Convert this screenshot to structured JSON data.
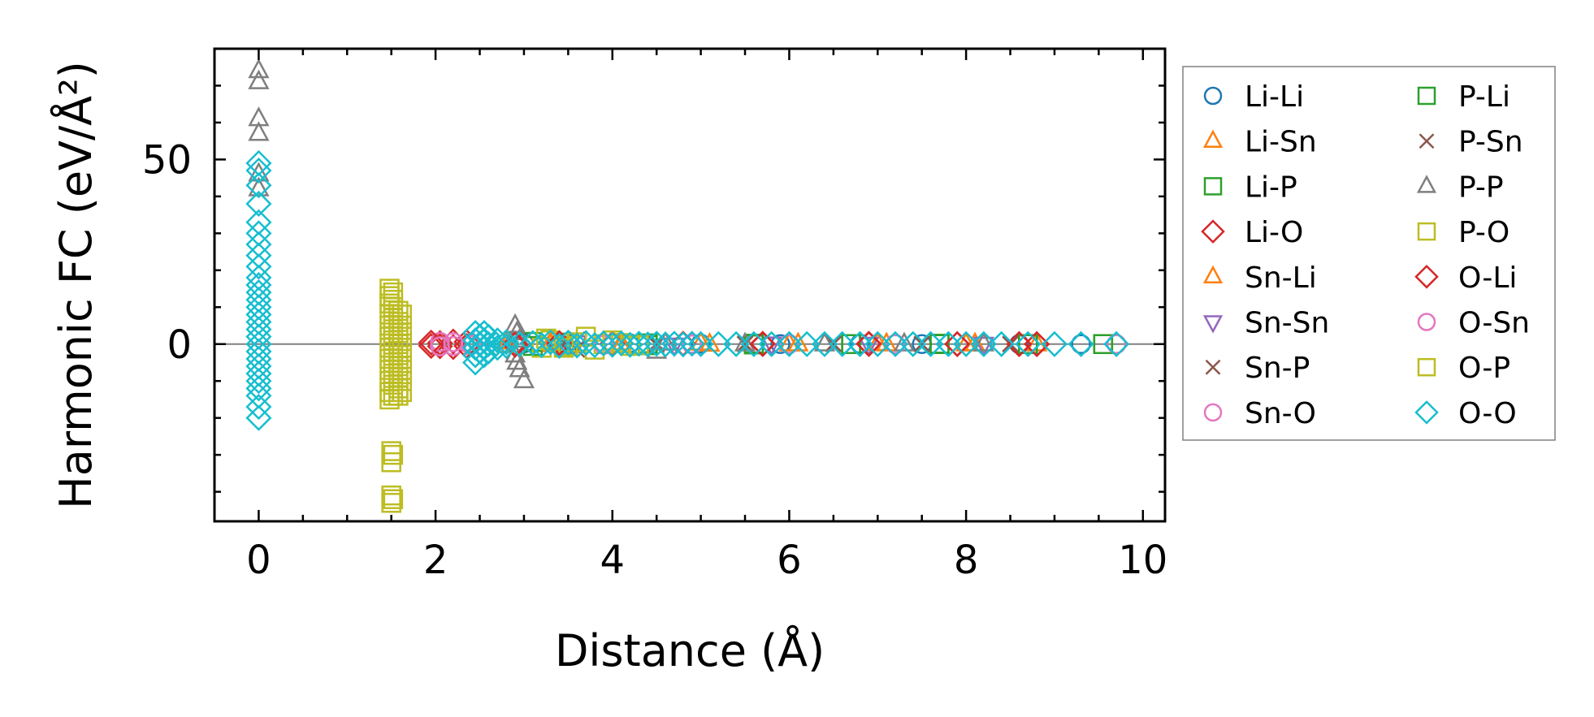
{
  "chart_data": {
    "type": "scatter",
    "xlabel": "Distance (Å)",
    "ylabel": "Harmonic FC (eV/Å²)",
    "xlim": [
      -0.5,
      10.25
    ],
    "ylim": [
      -48,
      80
    ],
    "x_ticks": [
      0,
      2,
      4,
      6,
      8,
      10
    ],
    "y_ticks": [
      0,
      50
    ],
    "reference_line_y": 0,
    "legend_position": "outside-right",
    "series": [
      {
        "name": "Li-Li",
        "marker": "circle",
        "color": "#1f77b4",
        "points": [
          [
            3.0,
            0.2
          ],
          [
            3.4,
            -0.3
          ],
          [
            4.2,
            0.2
          ],
          [
            5.0,
            0.1
          ],
          [
            5.9,
            0.0
          ],
          [
            6.8,
            0.1
          ],
          [
            7.5,
            0.0
          ],
          [
            8.6,
            0.0
          ],
          [
            9.3,
            0.0
          ]
        ]
      },
      {
        "name": "Li-Sn",
        "marker": "triangle-up",
        "color": "#ff7f0e",
        "points": [
          [
            2.8,
            0.5
          ],
          [
            3.3,
            0.3
          ],
          [
            4.1,
            -0.4
          ],
          [
            5.0,
            0.2
          ],
          [
            6.0,
            0.0
          ],
          [
            7.0,
            0.1
          ],
          [
            8.0,
            0.0
          ],
          [
            8.8,
            0.0
          ]
        ]
      },
      {
        "name": "Li-P",
        "marker": "square",
        "color": "#2ca02c",
        "points": [
          [
            3.1,
            -0.5
          ],
          [
            3.5,
            0.4
          ],
          [
            4.4,
            -0.3
          ],
          [
            5.6,
            0.1
          ],
          [
            6.7,
            0.0
          ],
          [
            7.7,
            0.1
          ],
          [
            8.7,
            0.0
          ],
          [
            9.55,
            0.0
          ]
        ]
      },
      {
        "name": "Li-O",
        "marker": "diamond",
        "color": "#d62728",
        "points": [
          [
            1.95,
            -0.5
          ],
          [
            2.05,
            0.3
          ],
          [
            2.2,
            -0.8
          ],
          [
            2.35,
            0.6
          ],
          [
            2.9,
            0.2
          ],
          [
            3.4,
            -0.3
          ],
          [
            4.0,
            0.1
          ],
          [
            4.8,
            0.0
          ],
          [
            5.7,
            0.1
          ],
          [
            6.9,
            0.0
          ],
          [
            7.9,
            0.0
          ],
          [
            8.6,
            0.0
          ],
          [
            8.8,
            0.0
          ]
        ]
      },
      {
        "name": "Sn-Li",
        "marker": "triangle-up",
        "color": "#ff7f0e",
        "points": [
          [
            2.8,
            -0.4
          ],
          [
            3.3,
            -0.2
          ],
          [
            4.1,
            0.3
          ],
          [
            5.1,
            -0.1
          ],
          [
            6.1,
            0.0
          ],
          [
            7.1,
            0.0
          ],
          [
            8.1,
            0.0
          ]
        ]
      },
      {
        "name": "Sn-Sn",
        "marker": "triangle-down",
        "color": "#9467bd",
        "points": [
          [
            3.6,
            0.4
          ],
          [
            4.7,
            -0.2
          ],
          [
            5.8,
            0.1
          ],
          [
            6.9,
            0.0
          ],
          [
            8.2,
            0.0
          ]
        ]
      },
      {
        "name": "Sn-P",
        "marker": "x",
        "color": "#8c564b",
        "points": [
          [
            3.45,
            0.5
          ],
          [
            3.6,
            -1.5
          ],
          [
            4.5,
            0.2
          ],
          [
            5.5,
            0.0
          ],
          [
            6.5,
            0.1
          ],
          [
            7.5,
            0.0
          ],
          [
            8.5,
            0.0
          ]
        ]
      },
      {
        "name": "Sn-O",
        "marker": "circle",
        "color": "#e377c2",
        "points": [
          [
            2.05,
            0.6
          ],
          [
            2.2,
            -0.5
          ],
          [
            2.4,
            0.3
          ],
          [
            3.9,
            0.2
          ],
          [
            4.9,
            -0.1
          ],
          [
            6.0,
            0.0
          ],
          [
            7.2,
            0.0
          ]
        ]
      },
      {
        "name": "P-Li",
        "marker": "square",
        "color": "#2ca02c",
        "points": [
          [
            3.1,
            0.6
          ],
          [
            3.5,
            -0.4
          ],
          [
            4.4,
            0.2
          ],
          [
            5.6,
            -0.1
          ],
          [
            6.7,
            0.0
          ],
          [
            7.7,
            0.0
          ],
          [
            8.7,
            0.0
          ],
          [
            9.55,
            0.0
          ]
        ]
      },
      {
        "name": "P-Sn",
        "marker": "x",
        "color": "#8c564b",
        "points": [
          [
            3.45,
            -0.5
          ],
          [
            3.6,
            1.2
          ],
          [
            4.5,
            -0.2
          ],
          [
            5.5,
            0.1
          ],
          [
            6.5,
            0.0
          ],
          [
            7.5,
            0.0
          ],
          [
            8.5,
            0.0
          ]
        ]
      },
      {
        "name": "P-P",
        "marker": "triangle-up",
        "color": "#7f7f7f",
        "points": [
          [
            0.0,
            74
          ],
          [
            0.0,
            71
          ],
          [
            0.0,
            61
          ],
          [
            0.0,
            57
          ],
          [
            0.0,
            46
          ],
          [
            0.0,
            42
          ],
          [
            2.9,
            5
          ],
          [
            2.92,
            3
          ],
          [
            2.95,
            1
          ],
          [
            2.9,
            -3
          ],
          [
            2.92,
            -5
          ],
          [
            2.95,
            -7
          ],
          [
            3.0,
            -10
          ],
          [
            4.5,
            -2
          ],
          [
            4.6,
            0.2
          ],
          [
            5.5,
            0.0
          ],
          [
            6.4,
            0.0
          ],
          [
            7.3,
            0.0
          ],
          [
            8.2,
            0.0
          ]
        ]
      },
      {
        "name": "P-O",
        "marker": "square",
        "color": "#bcbd22",
        "points": [
          [
            1.48,
            15
          ],
          [
            1.48,
            13
          ],
          [
            1.48,
            11
          ],
          [
            1.48,
            8
          ],
          [
            1.48,
            5
          ],
          [
            1.48,
            2
          ],
          [
            1.48,
            -1
          ],
          [
            1.48,
            -4
          ],
          [
            1.48,
            -7
          ],
          [
            1.48,
            -10
          ],
          [
            1.48,
            -13
          ],
          [
            1.48,
            -15
          ],
          [
            1.58,
            9
          ],
          [
            1.58,
            6
          ],
          [
            1.58,
            3
          ],
          [
            1.58,
            0
          ],
          [
            1.58,
            -3
          ],
          [
            1.58,
            -6
          ],
          [
            1.58,
            -9
          ],
          [
            1.58,
            -12
          ],
          [
            1.58,
            -14
          ],
          [
            1.5,
            -29
          ],
          [
            1.5,
            -32
          ],
          [
            1.5,
            -41
          ],
          [
            1.5,
            -43
          ],
          [
            3.2,
            -1
          ],
          [
            3.3,
            1
          ],
          [
            3.5,
            -0.5
          ],
          [
            3.7,
            2
          ],
          [
            3.9,
            0
          ],
          [
            4.1,
            0.3
          ],
          [
            4.3,
            -0.2
          ]
        ]
      },
      {
        "name": "O-Li",
        "marker": "diamond",
        "color": "#d62728",
        "points": [
          [
            1.95,
            0.4
          ],
          [
            2.05,
            -0.6
          ],
          [
            2.2,
            0.7
          ],
          [
            2.35,
            -0.5
          ],
          [
            2.9,
            -0.2
          ],
          [
            3.4,
            0.3
          ],
          [
            4.0,
            -0.1
          ],
          [
            4.8,
            0.1
          ],
          [
            5.7,
            0.0
          ],
          [
            6.9,
            0.1
          ],
          [
            7.9,
            0.0
          ],
          [
            8.6,
            0.0
          ],
          [
            8.8,
            0.0
          ]
        ]
      },
      {
        "name": "O-Sn",
        "marker": "circle",
        "color": "#e377c2",
        "points": [
          [
            2.05,
            -0.6
          ],
          [
            2.2,
            0.5
          ],
          [
            2.4,
            -0.3
          ],
          [
            3.9,
            -0.2
          ],
          [
            4.9,
            0.1
          ],
          [
            6.0,
            0.0
          ],
          [
            7.2,
            0.0
          ],
          [
            9.7,
            0.0
          ]
        ]
      },
      {
        "name": "O-P",
        "marker": "square",
        "color": "#bcbd22",
        "points": [
          [
            1.52,
            14
          ],
          [
            1.52,
            12
          ],
          [
            1.52,
            10
          ],
          [
            1.52,
            7
          ],
          [
            1.52,
            4
          ],
          [
            1.52,
            1
          ],
          [
            1.52,
            -2
          ],
          [
            1.52,
            -5
          ],
          [
            1.52,
            -8
          ],
          [
            1.52,
            -11
          ],
          [
            1.52,
            -14
          ],
          [
            1.62,
            8
          ],
          [
            1.62,
            5
          ],
          [
            1.62,
            2
          ],
          [
            1.62,
            -1
          ],
          [
            1.62,
            -4
          ],
          [
            1.62,
            -7
          ],
          [
            1.62,
            -10
          ],
          [
            1.62,
            -13
          ],
          [
            1.52,
            -30
          ],
          [
            1.52,
            -42
          ],
          [
            3.25,
            1.5
          ],
          [
            3.45,
            -1
          ],
          [
            3.6,
            0.5
          ],
          [
            3.8,
            -1.5
          ],
          [
            4.0,
            1
          ],
          [
            4.2,
            -0.5
          ]
        ]
      },
      {
        "name": "O-O",
        "marker": "diamond",
        "color": "#17becf",
        "points": [
          [
            0.0,
            49
          ],
          [
            0.0,
            47
          ],
          [
            0.0,
            43
          ],
          [
            0.0,
            38
          ],
          [
            0.0,
            33
          ],
          [
            0.0,
            30
          ],
          [
            0.0,
            27
          ],
          [
            0.0,
            24
          ],
          [
            0.0,
            21
          ],
          [
            0.0,
            18
          ],
          [
            0.0,
            16
          ],
          [
            0.0,
            14
          ],
          [
            0.0,
            12
          ],
          [
            0.0,
            10
          ],
          [
            0.0,
            8
          ],
          [
            0.0,
            6
          ],
          [
            0.0,
            4
          ],
          [
            0.0,
            2
          ],
          [
            0.0,
            0
          ],
          [
            0.0,
            -2
          ],
          [
            0.0,
            -4
          ],
          [
            0.0,
            -6
          ],
          [
            0.0,
            -8
          ],
          [
            0.0,
            -10
          ],
          [
            0.0,
            -12
          ],
          [
            0.0,
            -14
          ],
          [
            0.0,
            -17
          ],
          [
            0.0,
            -20
          ],
          [
            2.45,
            3
          ],
          [
            2.45,
            1
          ],
          [
            2.45,
            -1
          ],
          [
            2.45,
            -3
          ],
          [
            2.45,
            -5
          ],
          [
            2.5,
            2
          ],
          [
            2.5,
            0
          ],
          [
            2.5,
            -2
          ],
          [
            2.55,
            3
          ],
          [
            2.55,
            1
          ],
          [
            2.55,
            -1
          ],
          [
            2.55,
            -3
          ],
          [
            2.6,
            2
          ],
          [
            2.6,
            0
          ],
          [
            2.6,
            -2
          ],
          [
            2.7,
            1
          ],
          [
            2.7,
            -1
          ],
          [
            2.8,
            0.5
          ],
          [
            2.8,
            -0.5
          ],
          [
            2.95,
            0
          ],
          [
            3.1,
            0.3
          ],
          [
            3.2,
            -0.3
          ],
          [
            3.3,
            0.5
          ],
          [
            3.4,
            -0.5
          ],
          [
            3.5,
            0.4
          ],
          [
            3.6,
            -0.4
          ],
          [
            3.7,
            0.3
          ],
          [
            3.8,
            -0.3
          ],
          [
            3.9,
            0.2
          ],
          [
            4.0,
            -0.2
          ],
          [
            4.1,
            0.2
          ],
          [
            4.2,
            -0.2
          ],
          [
            4.3,
            0.1
          ],
          [
            4.4,
            -0.1
          ],
          [
            4.5,
            0.1
          ],
          [
            4.6,
            -0.1
          ],
          [
            4.7,
            0.1
          ],
          [
            4.8,
            -0.1
          ],
          [
            4.9,
            0.1
          ],
          [
            5.0,
            0.0
          ],
          [
            5.2,
            0.0
          ],
          [
            5.4,
            0.0
          ],
          [
            5.6,
            0.0
          ],
          [
            5.8,
            0.0
          ],
          [
            6.0,
            0.0
          ],
          [
            6.2,
            0.0
          ],
          [
            6.4,
            0.0
          ],
          [
            6.6,
            0.0
          ],
          [
            6.8,
            0.0
          ],
          [
            7.0,
            0.0
          ],
          [
            7.2,
            0.0
          ],
          [
            7.4,
            0.0
          ],
          [
            7.6,
            0.0
          ],
          [
            7.8,
            0.0
          ],
          [
            8.0,
            0.0
          ],
          [
            8.2,
            0.0
          ],
          [
            8.4,
            0.0
          ],
          [
            8.7,
            0.0
          ],
          [
            9.0,
            0.0
          ],
          [
            9.3,
            0.0
          ],
          [
            9.7,
            0.0
          ]
        ]
      }
    ]
  }
}
